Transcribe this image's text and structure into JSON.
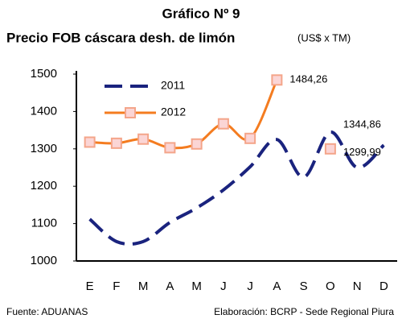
{
  "chart_data": {
    "type": "line",
    "title": "Gráfico Nº 9",
    "subtitle": "Precio FOB cáscara desh. de limón",
    "unit": "(US$ x TM)",
    "source": "Fuente: ADUANAS",
    "credit": "Elaboración: BCRP - Sede Regional Piura",
    "categories": [
      "E",
      "F",
      "M",
      "A",
      "M",
      "J",
      "J",
      "A",
      "S",
      "O",
      "N",
      "D"
    ],
    "series": [
      {
        "name": "2011",
        "color": "#1a237e",
        "dashed": true,
        "values": [
          1112,
          1052,
          1052,
          1103,
          1142,
          1190,
          1252,
          1325,
          1224,
          1344.86,
          1250,
          1310
        ],
        "value_labels": [
          null,
          null,
          null,
          null,
          null,
          null,
          null,
          null,
          null,
          "1344,86",
          null,
          null
        ]
      },
      {
        "name": "2012",
        "color": "#f47c20",
        "dashed": false,
        "values": [
          1318,
          1315,
          1326,
          1303,
          1313,
          1367,
          1328,
          1484.26,
          null,
          1299.99,
          null,
          null
        ],
        "value_labels": [
          null,
          null,
          null,
          null,
          null,
          null,
          null,
          "1484,26",
          null,
          "1299,99",
          null,
          null
        ]
      }
    ],
    "ylim": [
      1000,
      1500
    ],
    "yticks": [
      1000,
      1100,
      1200,
      1300,
      1400,
      1500
    ],
    "grid": false,
    "legend": "upper left"
  }
}
